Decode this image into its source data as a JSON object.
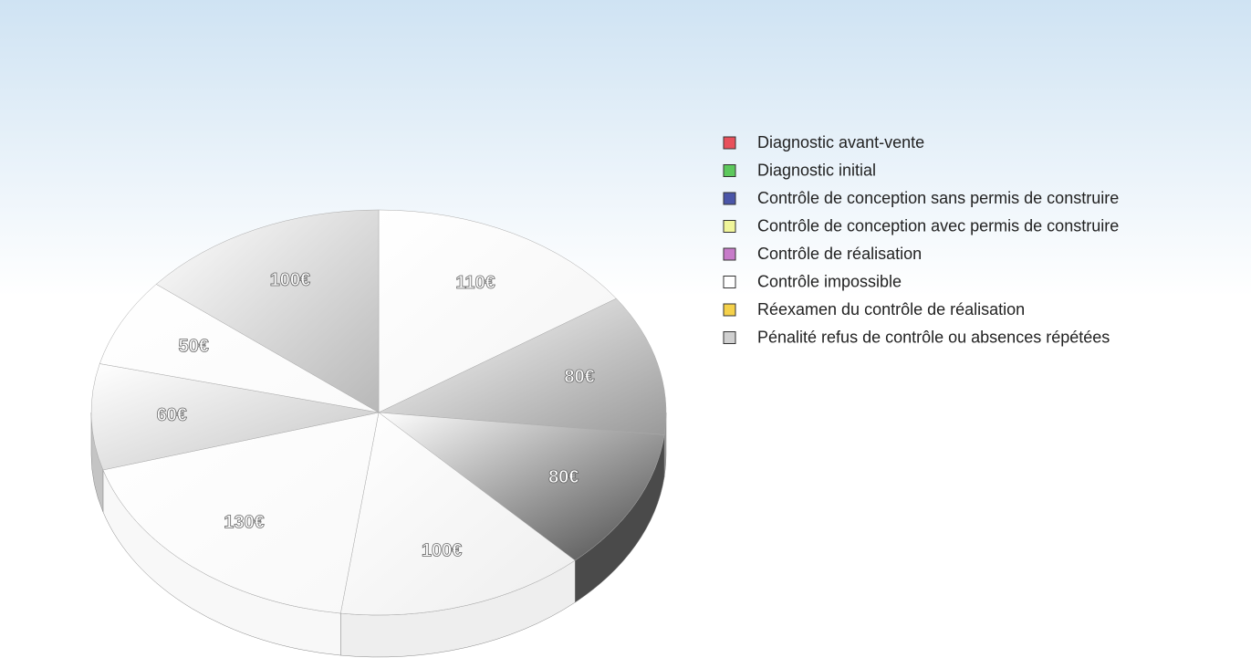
{
  "chart_data": {
    "type": "pie",
    "categories": [
      "Diagnostic avant-vente",
      "Diagnostic initial",
      "Contrôle de conception sans permis de construire",
      "Contrôle de conception avec permis de construire",
      "Contrôle de réalisation",
      "Contrôle impossible",
      "Réexamen du contrôle de réalisation",
      "Pénalité refus de contrôle ou absences répétées"
    ],
    "values": [
      110,
      80,
      80,
      100,
      130,
      60,
      50,
      100
    ],
    "value_labels": [
      "110€",
      "80€",
      "80€",
      "100€",
      "130€",
      "60€",
      "50€",
      "100€"
    ],
    "colors": [
      "#e8505b",
      "#5cc85c",
      "#4a55a8",
      "#f0f59a",
      "#c77bc9",
      "#ffffff",
      "#f5d14a",
      "#d0d0d0"
    ],
    "slice_colors": [
      "#f4f4f4",
      "#9a9a9a",
      "#4a4a4a",
      "#eeeeee",
      "#f8f8f8",
      "#c4c4c4",
      "#fafafa",
      "#b8b8b8"
    ],
    "legend": "right"
  }
}
